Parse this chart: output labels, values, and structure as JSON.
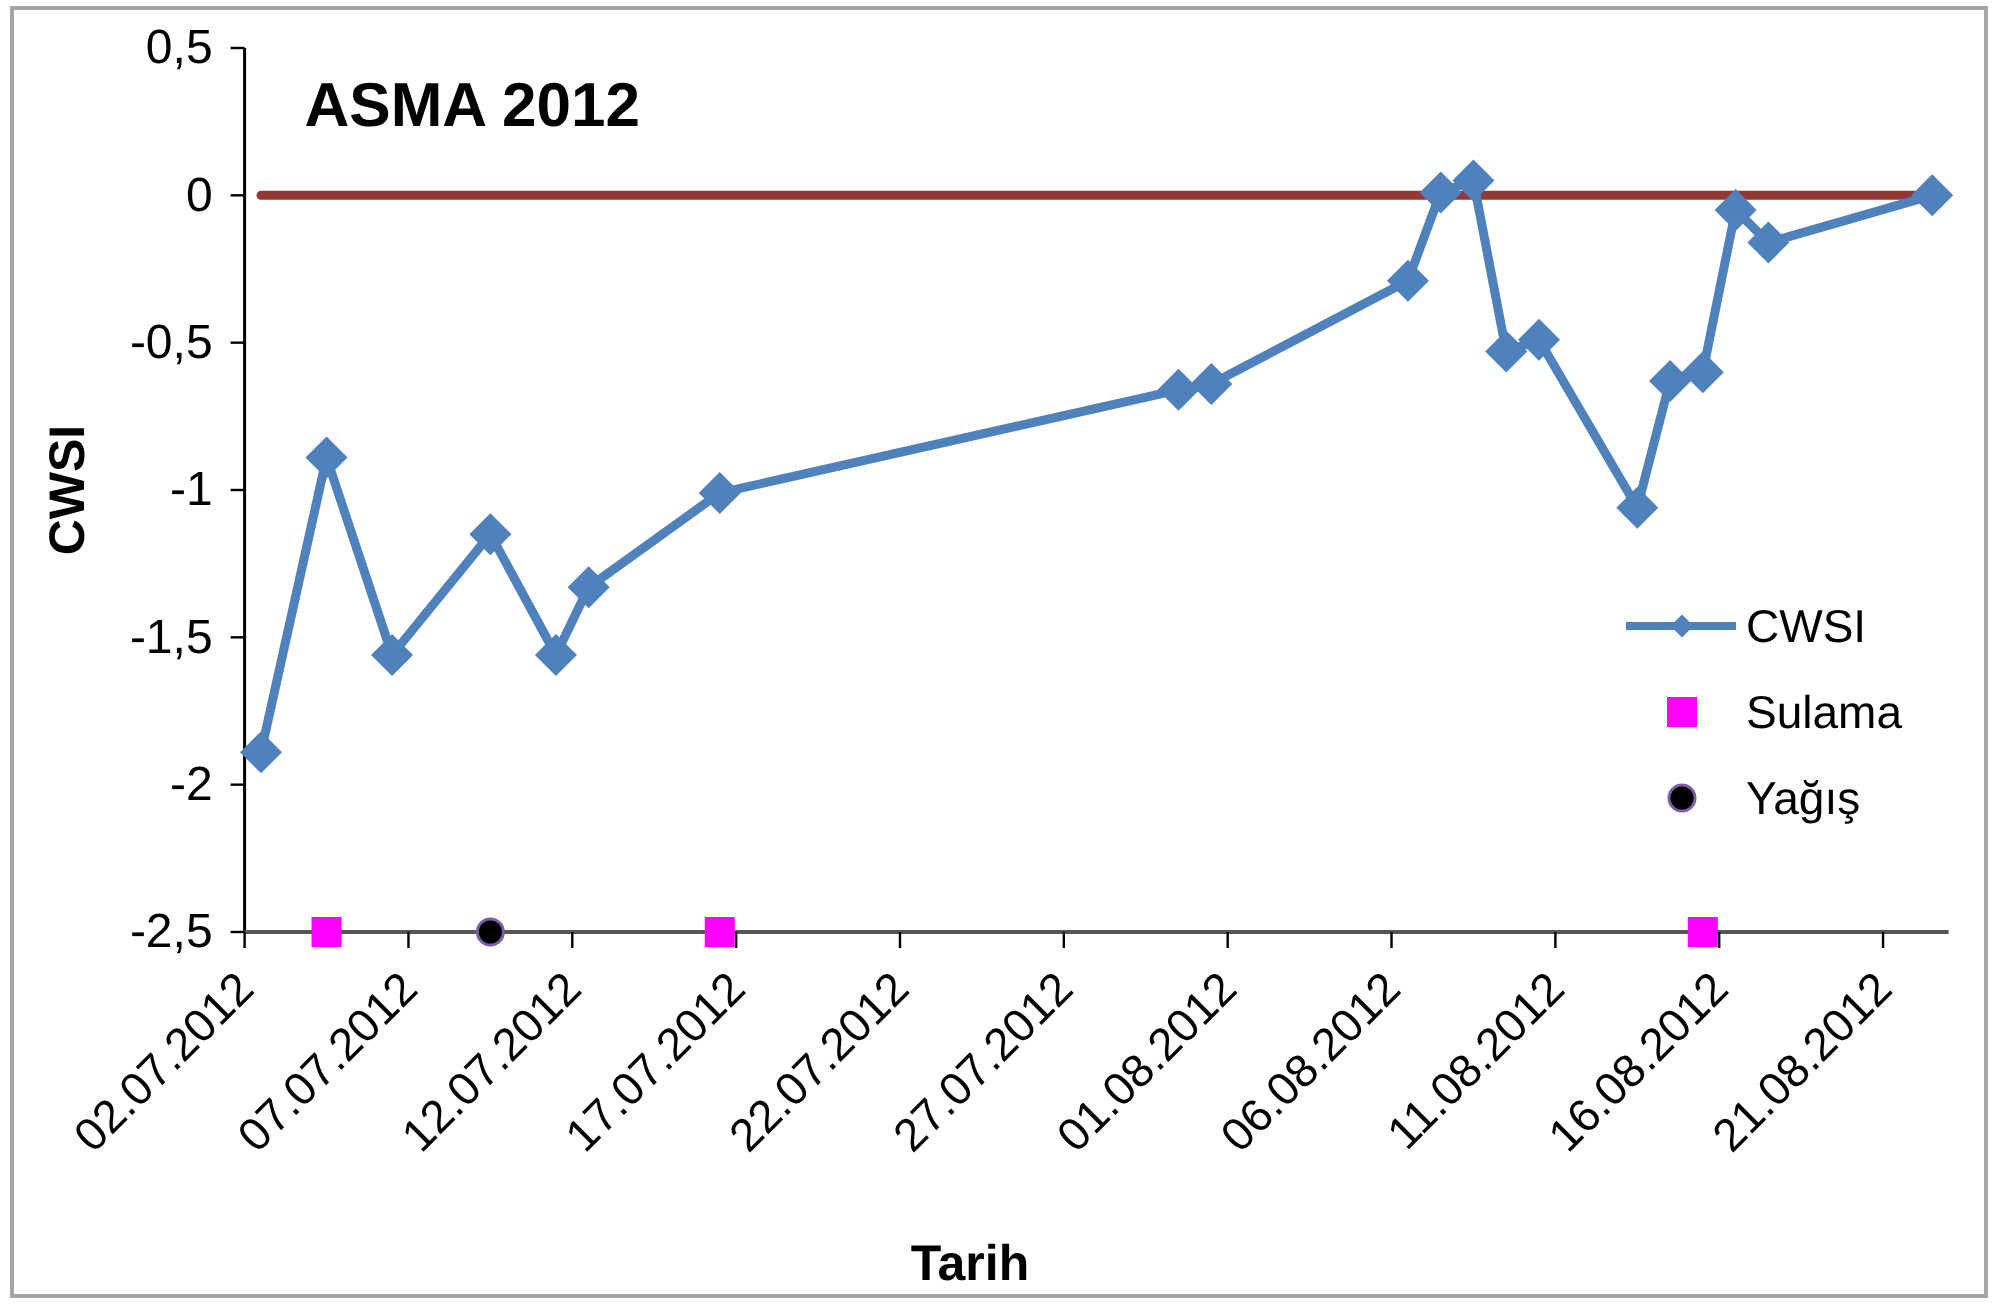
{
  "chart_data": {
    "type": "line",
    "title": "ASMA 2012",
    "xlabel": "Tarih",
    "ylabel": "CWSI",
    "legend": "right",
    "xlim": [
      "2012-07-02",
      "2012-08-23"
    ],
    "xticks": [
      {
        "value": "2012-07-02",
        "label": "02.07.2012"
      },
      {
        "value": "2012-07-07",
        "label": "07.07.2012"
      },
      {
        "value": "2012-07-12",
        "label": "12.07.2012"
      },
      {
        "value": "2012-07-17",
        "label": "17.07.2012"
      },
      {
        "value": "2012-07-22",
        "label": "22.07.2012"
      },
      {
        "value": "2012-07-27",
        "label": "27.07.2012"
      },
      {
        "value": "2012-08-01",
        "label": "01.08.2012"
      },
      {
        "value": "2012-08-06",
        "label": "06.08.2012"
      },
      {
        "value": "2012-08-11",
        "label": "11.08.2012"
      },
      {
        "value": "2012-08-16",
        "label": "16.08.2012"
      },
      {
        "value": "2012-08-21",
        "label": "21.08.2012"
      }
    ],
    "ylim": [
      -2.5,
      0.5
    ],
    "yticks": [
      {
        "value": 0.5,
        "label": "0,5"
      },
      0,
      {
        "value": -0.5,
        "label": "-0,5"
      },
      -1,
      {
        "value": -1.5,
        "label": "-1,5"
      },
      -2,
      {
        "value": -2.5,
        "label": "-2,5"
      }
    ],
    "series": [
      {
        "color": "#953735",
        "marker": "none",
        "x": [
          "2012-07-02T12:00",
          "2012-08-22T12:00"
        ],
        "values": [
          0,
          0
        ]
      },
      {
        "name": "CWSI",
        "color": "#4f81bd",
        "marker": "diamond",
        "x": [
          "2012-07-02T12:00",
          "2012-07-04T12:00",
          "2012-07-06T12:00",
          "2012-07-09T12:00",
          "2012-07-11T12:00",
          "2012-07-12T12:00",
          "2012-07-16T12:00",
          "2012-07-30T12:00",
          "2012-07-31T12:00",
          "2012-08-06T12:00",
          "2012-08-07T12:00",
          "2012-08-08T12:00",
          "2012-08-09T12:00",
          "2012-08-10T12:00",
          "2012-08-13T12:00",
          "2012-08-14T12:00",
          "2012-08-15T12:00",
          "2012-08-16T12:00",
          "2012-08-17T12:00",
          "2012-08-22T12:00"
        ],
        "values": [
          -1.89,
          -0.89,
          -1.56,
          -1.15,
          -1.56,
          -1.33,
          -1.01,
          -0.66,
          -0.64,
          -0.29,
          0.01,
          0.05,
          -0.53,
          -0.49,
          -1.06,
          -0.63,
          -0.6,
          -0.05,
          -0.16,
          0
        ]
      },
      {
        "name": "Sulama",
        "type": "scatter",
        "color": "#ff00ff",
        "marker": "square",
        "x": [
          "2012-07-04T12:00",
          "2012-07-16T12:00",
          "2012-08-15T12:00"
        ],
        "values": [
          -2.5,
          -2.5,
          -2.5
        ]
      },
      {
        "name": "Yağış",
        "type": "scatter",
        "color": "#000000",
        "marker": "circle",
        "x": [
          "2012-07-09T12:00"
        ],
        "values": [
          -2.5
        ]
      }
    ]
  }
}
